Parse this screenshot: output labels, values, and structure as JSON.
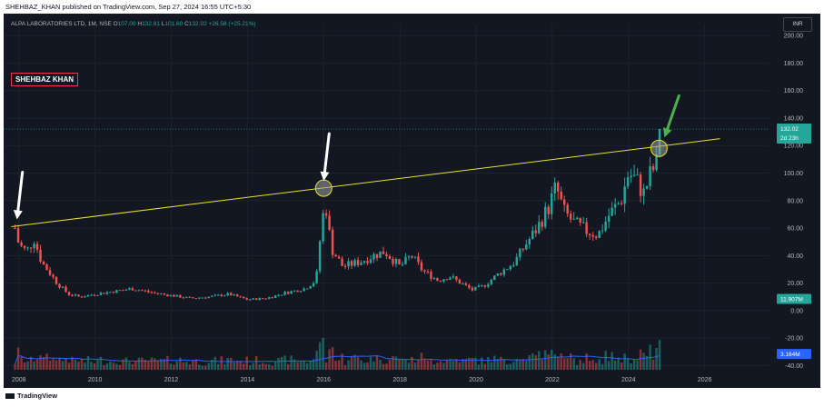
{
  "header": {
    "publish_text": "SHEHBAZ_KHAN published on TradingView.com, Sep 27, 2024 16:55 UTC+5:30"
  },
  "symbol": {
    "name": "ALPA LABORATORIES LTD, 1M, NSE",
    "o_label": "O",
    "o_value": "107.00",
    "h_label": "H",
    "h_value": "132.81",
    "l_label": "L",
    "l_value": "101.60",
    "c_label": "C",
    "c_value": "132.02",
    "change": "+26.58 (+25.21%)"
  },
  "watermark": "SHEHBAZ KHAN",
  "currency": "INR",
  "footer": {
    "brand": "TradingView"
  },
  "colors": {
    "background": "#131722",
    "up": "#26a69a",
    "down": "#ef5350",
    "trendline": "#e6e22c",
    "arrow_white": "#ffffff",
    "arrow_green": "#4caf50",
    "ma_line": "#2962ff"
  },
  "chart_data": {
    "type": "candlestick",
    "interval": "1M",
    "y_axis_labels": [
      "200.00",
      "180.00",
      "160.00",
      "140.00",
      "120.00",
      "100.00",
      "80.00",
      "60.00",
      "40.00",
      "20.00",
      "0.00",
      "-20.00",
      "-40.00"
    ],
    "ylim": [
      -43,
      208
    ],
    "x_axis_labels": [
      "2008",
      "2010",
      "2012",
      "2014",
      "2016",
      "2018",
      "2020",
      "2022",
      "2024",
      "2026"
    ],
    "xlim": [
      2007.6,
      2027.7
    ],
    "last_price_label": "132.02",
    "countdown_label": "2d 23h",
    "volume_label": "11.907M",
    "volume_ma_label": "3.164M",
    "trendline": {
      "start": [
        2007.8,
        61
      ],
      "end": [
        2026.4,
        125
      ]
    },
    "touch_points": [
      [
        2007.95,
        61
      ],
      [
        2016.0,
        89
      ],
      [
        2024.8,
        118
      ]
    ],
    "arrows": [
      {
        "color": "white",
        "at": [
          2007.95,
          61
        ]
      },
      {
        "color": "white",
        "at": [
          2016.0,
          89
        ]
      },
      {
        "color": "green",
        "at": [
          2024.8,
          118
        ]
      }
    ],
    "close_anchors": [
      [
        2007.9,
        60
      ],
      [
        2008.0,
        48
      ],
      [
        2008.2,
        43
      ],
      [
        2008.4,
        52
      ],
      [
        2008.6,
        35
      ],
      [
        2008.8,
        28
      ],
      [
        2009.0,
        20
      ],
      [
        2009.3,
        12
      ],
      [
        2009.6,
        10
      ],
      [
        2010.0,
        12
      ],
      [
        2010.5,
        14
      ],
      [
        2011.0,
        16
      ],
      [
        2011.5,
        13
      ],
      [
        2012.0,
        11
      ],
      [
        2012.5,
        9
      ],
      [
        2013.0,
        10
      ],
      [
        2013.5,
        12
      ],
      [
        2014.0,
        8
      ],
      [
        2014.5,
        9
      ],
      [
        2015.0,
        13
      ],
      [
        2015.5,
        16
      ],
      [
        2015.8,
        22
      ],
      [
        2015.95,
        65
      ],
      [
        2016.05,
        78
      ],
      [
        2016.2,
        45
      ],
      [
        2016.5,
        32
      ],
      [
        2017.0,
        36
      ],
      [
        2017.3,
        40
      ],
      [
        2017.6,
        43
      ],
      [
        2018.0,
        32
      ],
      [
        2018.3,
        40
      ],
      [
        2018.6,
        29
      ],
      [
        2019.0,
        22
      ],
      [
        2019.3,
        25
      ],
      [
        2019.6,
        20
      ],
      [
        2019.9,
        15
      ],
      [
        2020.2,
        18
      ],
      [
        2020.6,
        27
      ],
      [
        2021.0,
        35
      ],
      [
        2021.3,
        48
      ],
      [
        2021.6,
        60
      ],
      [
        2021.9,
        75
      ],
      [
        2022.1,
        90
      ],
      [
        2022.3,
        72
      ],
      [
        2022.6,
        63
      ],
      [
        2022.9,
        58
      ],
      [
        2023.2,
        55
      ],
      [
        2023.5,
        70
      ],
      [
        2023.8,
        80
      ],
      [
        2024.0,
        100
      ],
      [
        2024.2,
        95
      ],
      [
        2024.4,
        85
      ],
      [
        2024.6,
        101
      ],
      [
        2024.75,
        107
      ],
      [
        2024.83,
        132.02
      ]
    ]
  }
}
